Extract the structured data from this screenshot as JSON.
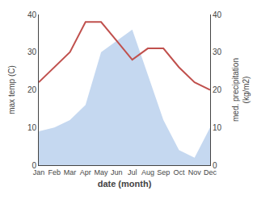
{
  "chart_data": {
    "type": "line",
    "categories": [
      "Jan",
      "Feb",
      "Mar",
      "Apr",
      "May",
      "Jun",
      "Jul",
      "Aug",
      "Sep",
      "Oct",
      "Nov",
      "Dec"
    ],
    "series": [
      {
        "type": "area",
        "axis": "y2",
        "color": "#c5d8f0",
        "values": [
          9,
          10,
          12,
          16,
          30,
          33,
          36,
          24,
          12,
          4,
          2,
          10
        ]
      },
      {
        "type": "line",
        "color": "#c0504d",
        "values": [
          22,
          26,
          30,
          38,
          38,
          33,
          28,
          31,
          31,
          26,
          22,
          20
        ]
      }
    ],
    "xlabel": "date (month)",
    "ylabel": "max temp (C)",
    "y2label": "med. precipitation\n(kg/m2)",
    "ylim": [
      0,
      40
    ],
    "yticks": [
      0,
      10,
      20,
      30,
      40
    ],
    "y2lim": [
      0,
      40
    ],
    "y2ticks": [
      0,
      10,
      20,
      30,
      40
    ],
    "grid": false
  }
}
